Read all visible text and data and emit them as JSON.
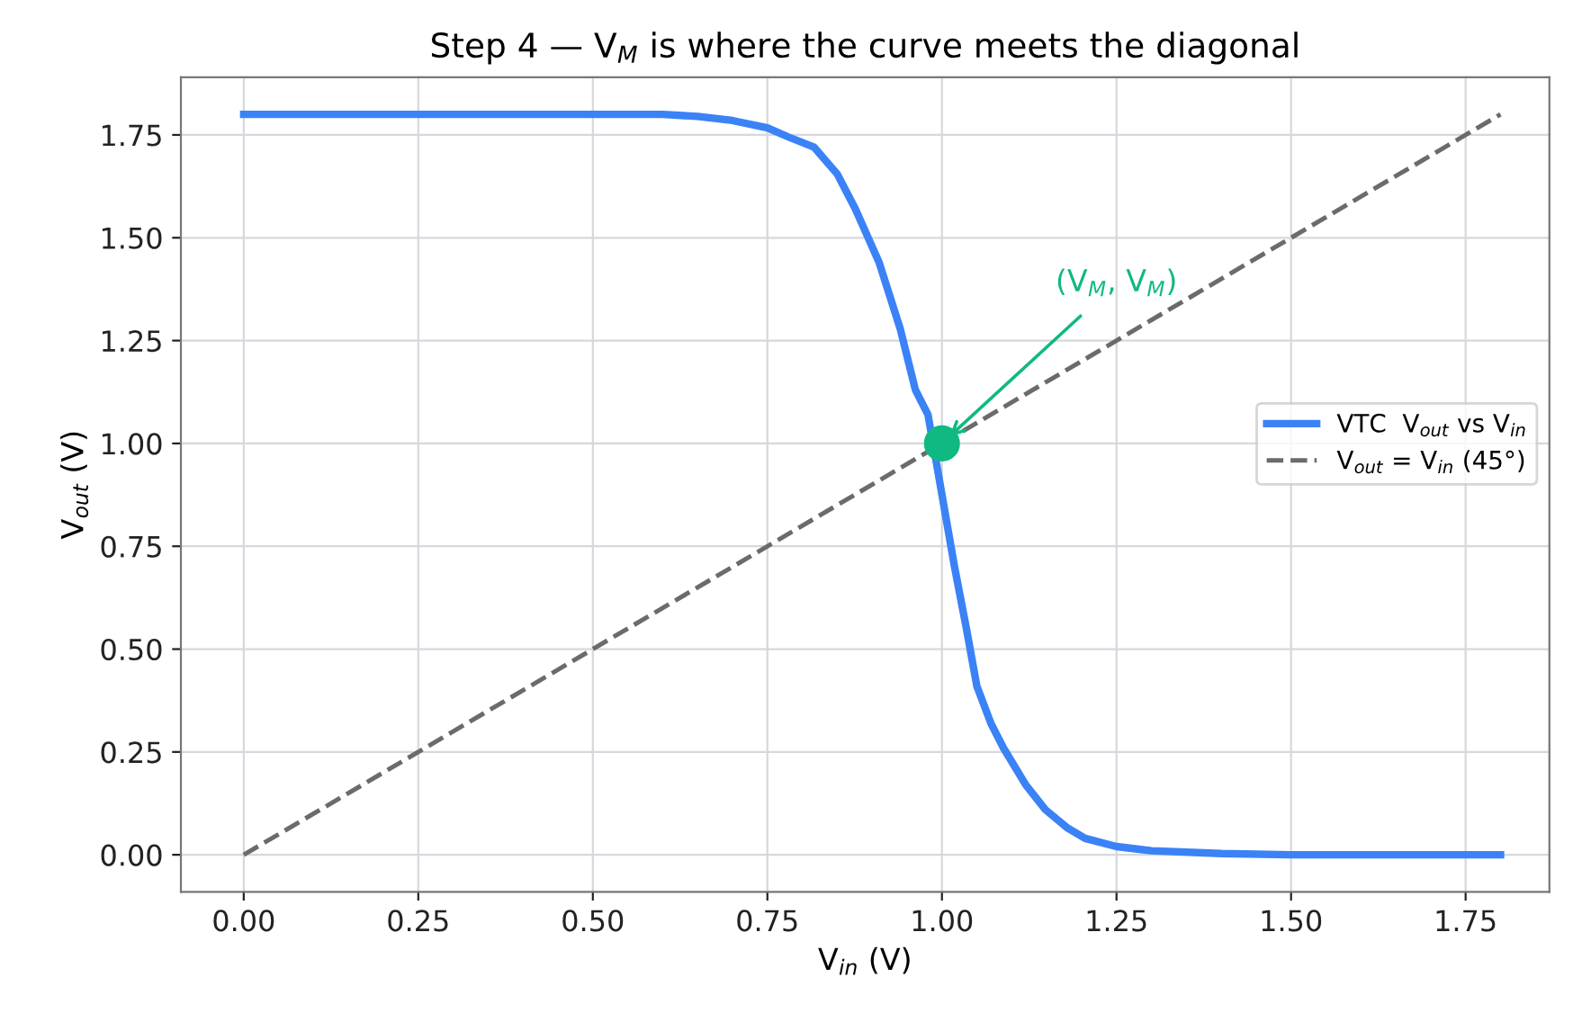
{
  "chart_data": {
    "type": "line",
    "title": "Step 4 — V$_{M}$ is where the curve meets the diagonal",
    "xlabel": "V$_{in}$ (V)",
    "ylabel": "V$_{out}$ (V)",
    "series": [
      {
        "name": "VTC  V$_{out}$ vs V$_{in}$",
        "color": "#3b82f6",
        "line_style": "solid",
        "x": [
          0,
          0.2,
          0.4,
          0.6,
          0.65,
          0.7,
          0.75,
          0.78,
          0.817,
          0.85,
          0.876,
          0.91,
          0.94,
          0.962,
          0.98,
          1.018,
          1.035,
          1.05,
          1.07,
          1.088,
          1.12,
          1.148,
          1.18,
          1.205,
          1.25,
          1.3,
          1.4,
          1.5,
          1.6,
          1.7,
          1.8
        ],
        "values": [
          1.8,
          1.8,
          1.8,
          1.8,
          1.795,
          1.785,
          1.767,
          1.745,
          1.72,
          1.655,
          1.57,
          1.44,
          1.28,
          1.13,
          1.07,
          0.7,
          0.55,
          0.41,
          0.32,
          0.26,
          0.17,
          0.11,
          0.065,
          0.04,
          0.02,
          0.01,
          0.003,
          0,
          0,
          0,
          0
        ]
      },
      {
        "name": "V$_{out}$ = V$_{in}$ (45°)",
        "color": "#6b6b6b",
        "line_style": "dashed",
        "x": [
          0,
          1.8
        ],
        "values": [
          0,
          1.8
        ]
      },
      {
        "type": "scatter",
        "color": "#10b981",
        "marker": "circle",
        "x": [
          1.0
        ],
        "values": [
          1.0
        ]
      }
    ],
    "annotations": [
      {
        "text": "(V$_{M}$, V$_{M}$)",
        "x": 1.0,
        "y": 1.0
      }
    ],
    "xlim": [
      -0.09,
      1.87
    ],
    "ylim": [
      -0.09,
      1.89
    ],
    "xticks": [
      {
        "value": 0,
        "label": "0.00"
      },
      {
        "value": 0.25,
        "label": "0.25"
      },
      {
        "value": 0.5,
        "label": "0.50"
      },
      {
        "value": 0.75,
        "label": "0.75"
      },
      {
        "value": 1,
        "label": "1.00"
      },
      {
        "value": 1.25,
        "label": "1.25"
      },
      {
        "value": 1.5,
        "label": "1.50"
      },
      {
        "value": 1.75,
        "label": "1.75"
      }
    ],
    "yticks": [
      {
        "value": 0,
        "label": "0.00"
      },
      {
        "value": 0.25,
        "label": "0.25"
      },
      {
        "value": 0.5,
        "label": "0.50"
      },
      {
        "value": 0.75,
        "label": "0.75"
      },
      {
        "value": 1,
        "label": "1.00"
      },
      {
        "value": 1.25,
        "label": "1.25"
      },
      {
        "value": 1.5,
        "label": "1.50"
      },
      {
        "value": 1.75,
        "label": "1.75"
      }
    ],
    "grid": true,
    "legend": "right"
  }
}
